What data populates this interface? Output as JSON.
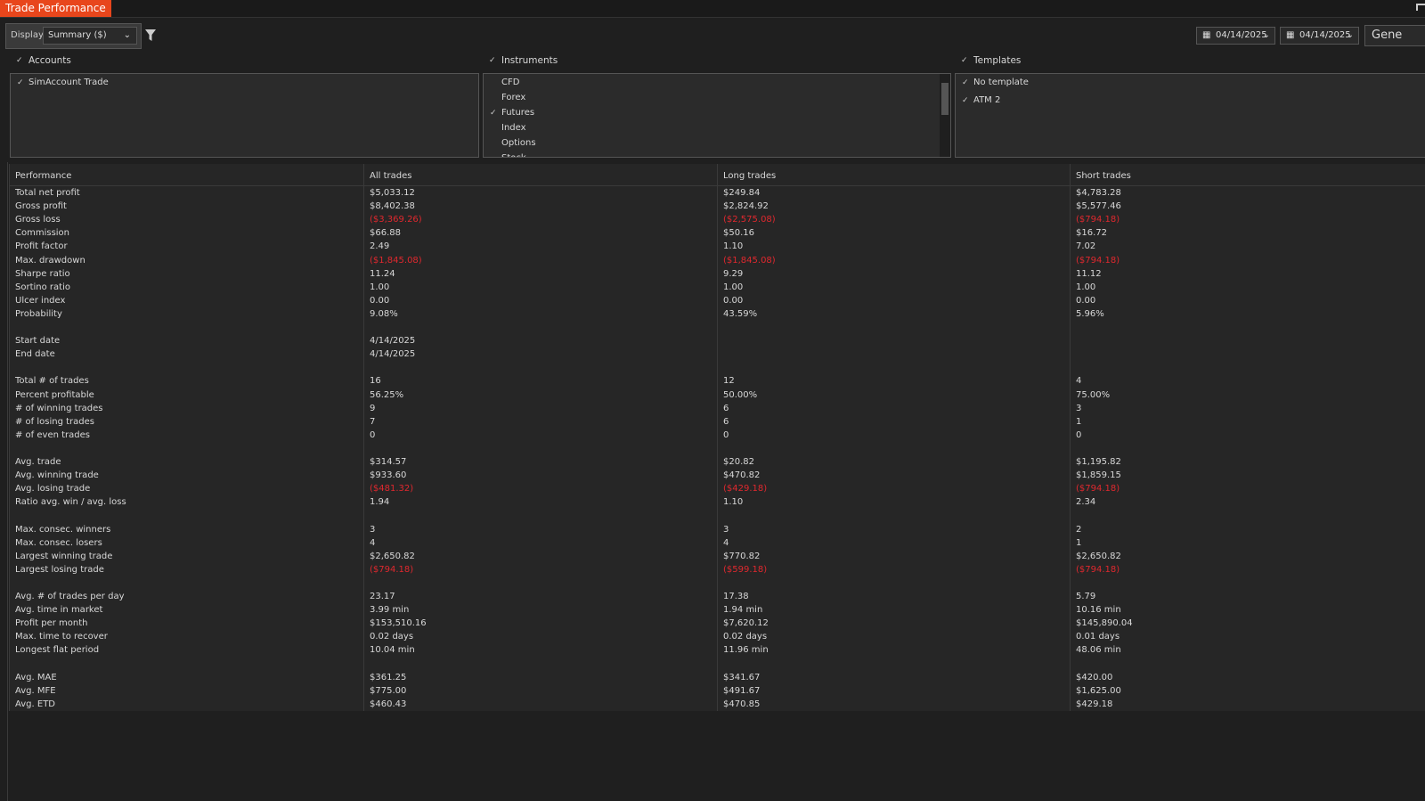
{
  "window": {
    "title": "Trade Performance"
  },
  "toolbar": {
    "display_label": "Display",
    "display_value": "Summary ($)",
    "start_date": "04/14/2025",
    "end_date": "04/14/2025",
    "generate": "Gene"
  },
  "filters": [
    {
      "title": "Accounts",
      "checked": true,
      "items": [
        {
          "label": "SimAccount Trade",
          "checked": true
        }
      ]
    },
    {
      "title": "Instruments",
      "checked": true,
      "items": [
        {
          "label": "CFD",
          "checked": false
        },
        {
          "label": "Forex",
          "checked": false
        },
        {
          "label": "Futures",
          "checked": true
        },
        {
          "label": "Index",
          "checked": false
        },
        {
          "label": "Options",
          "checked": false
        },
        {
          "label": "Stock",
          "checked": false
        }
      ]
    },
    {
      "title": "Templates",
      "checked": true,
      "items": [
        {
          "label": "No template",
          "checked": true
        },
        {
          "label": "ATM 2",
          "checked": true
        }
      ]
    }
  ],
  "table": {
    "columns": [
      "Performance",
      "All trades",
      "Long trades",
      "Short trades"
    ],
    "sections": [
      [
        [
          "Total net profit",
          "$5,033.12",
          "$249.84",
          "$4,783.28"
        ],
        [
          "Gross profit",
          "$8,402.38",
          "$2,824.92",
          "$5,577.46"
        ],
        [
          "Gross loss",
          "($3,369.26)",
          "($2,575.08)",
          "($794.18)"
        ],
        [
          "Commission",
          "$66.88",
          "$50.16",
          "$16.72"
        ],
        [
          "Profit factor",
          "2.49",
          "1.10",
          "7.02"
        ],
        [
          "Max. drawdown",
          "($1,845.08)",
          "($1,845.08)",
          "($794.18)"
        ],
        [
          "Sharpe ratio",
          "11.24",
          "9.29",
          "11.12"
        ],
        [
          "Sortino ratio",
          "1.00",
          "1.00",
          "1.00"
        ],
        [
          "Ulcer index",
          "0.00",
          "0.00",
          "0.00"
        ],
        [
          "Probability",
          "9.08%",
          "43.59%",
          "5.96%"
        ]
      ],
      [
        [
          "Start date",
          "4/14/2025",
          null,
          null
        ],
        [
          "End date",
          "4/14/2025",
          null,
          null
        ]
      ],
      [
        [
          "Total # of trades",
          "16",
          "12",
          "4"
        ],
        [
          "Percent profitable",
          "56.25%",
          "50.00%",
          "75.00%"
        ],
        [
          "# of winning trades",
          "9",
          "6",
          "3"
        ],
        [
          "# of losing trades",
          "7",
          "6",
          "1"
        ],
        [
          "# of even trades",
          "0",
          "0",
          "0"
        ]
      ],
      [
        [
          "Avg. trade",
          "$314.57",
          "$20.82",
          "$1,195.82"
        ],
        [
          "Avg. winning trade",
          "$933.60",
          "$470.82",
          "$1,859.15"
        ],
        [
          "Avg. losing trade",
          "($481.32)",
          "($429.18)",
          "($794.18)"
        ],
        [
          "Ratio avg. win / avg. loss",
          "1.94",
          "1.10",
          "2.34"
        ]
      ],
      [
        [
          "Max. consec. winners",
          "3",
          "3",
          "2"
        ],
        [
          "Max. consec. losers",
          "4",
          "4",
          "1"
        ],
        [
          "Largest winning trade",
          "$2,650.82",
          "$770.82",
          "$2,650.82"
        ],
        [
          "Largest losing trade",
          "($794.18)",
          "($599.18)",
          "($794.18)"
        ]
      ],
      [
        [
          "Avg. # of trades per day",
          "23.17",
          "17.38",
          "5.79"
        ],
        [
          "Avg. time in market",
          "3.99 min",
          "1.94 min",
          "10.16 min"
        ],
        [
          "Profit per month",
          "$153,510.16",
          "$7,620.12",
          "$145,890.04"
        ],
        [
          "Max. time to recover",
          "0.02 days",
          "0.02 days",
          "0.01 days"
        ],
        [
          "Longest flat period",
          "10.04 min",
          "11.96 min",
          "48.06 min"
        ]
      ],
      [
        [
          "Avg. MAE",
          "$361.25",
          "$341.67",
          "$420.00"
        ],
        [
          "Avg. MFE",
          "$775.00",
          "$491.67",
          "$1,625.00"
        ],
        [
          "Avg. ETD",
          "$460.43",
          "$470.85",
          "$429.18"
        ]
      ]
    ]
  }
}
